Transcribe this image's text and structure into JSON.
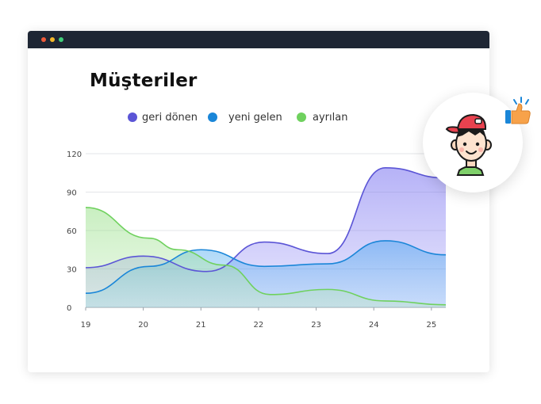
{
  "window": {
    "controls": [
      "close",
      "minimize",
      "maximize"
    ]
  },
  "title": "Müşteriler",
  "colors": {
    "returning": "#5b55d6",
    "new": "#1a86d8",
    "left": "#6fd15e",
    "titlebar": "#1e2634"
  },
  "avatar": {
    "icons": [
      "boy-avatar-icon",
      "thumbs-up-icon"
    ]
  },
  "chart_data": {
    "type": "area",
    "x": [
      19,
      20,
      21,
      22,
      23,
      24,
      25
    ],
    "xlim": [
      19,
      25.25
    ],
    "ylim": [
      0,
      120
    ],
    "yticks": [
      0,
      30,
      60,
      90,
      120
    ],
    "grid": true,
    "legend_position": "top",
    "series": [
      {
        "name": "geri dönen",
        "color": "#5b55d6",
        "points": [
          [
            19,
            31
          ],
          [
            20,
            40
          ],
          [
            21.1,
            28
          ],
          [
            22.1,
            51
          ],
          [
            23.2,
            42
          ],
          [
            24.2,
            109
          ],
          [
            25.25,
            101
          ]
        ]
      },
      {
        "name": "yeni gelen",
        "color": "#1a86d8",
        "points": [
          [
            19,
            11
          ],
          [
            20.1,
            32
          ],
          [
            21,
            45
          ],
          [
            22.1,
            32
          ],
          [
            23.2,
            34
          ],
          [
            24.2,
            52
          ],
          [
            25.25,
            41
          ]
        ]
      },
      {
        "name": "ayrılan",
        "color": "#6fd15e",
        "points": [
          [
            19,
            78
          ],
          [
            20.1,
            54
          ],
          [
            20.6,
            45
          ],
          [
            21.4,
            33
          ],
          [
            22.2,
            10
          ],
          [
            23.2,
            14
          ],
          [
            24.2,
            5
          ],
          [
            25.25,
            2
          ]
        ]
      }
    ]
  }
}
